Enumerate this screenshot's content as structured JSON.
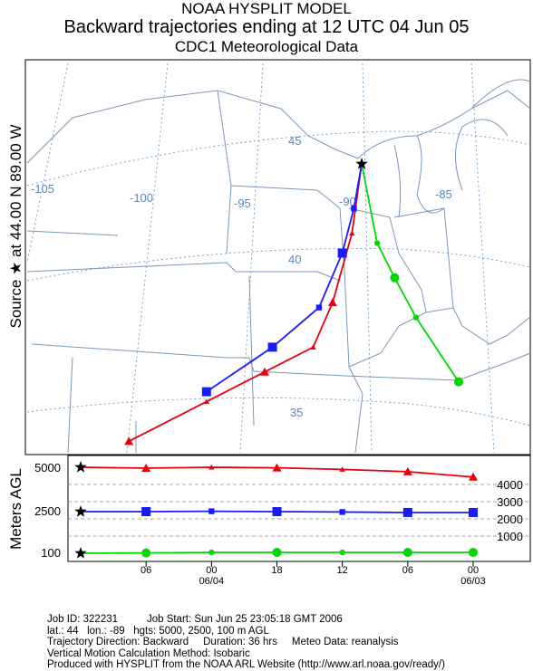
{
  "header": {
    "line1": "NOAA HYSPLIT MODEL",
    "line2": "Backward trajectories ending at 12 UTC 04 Jun 05",
    "line3": "CDC1 Meteorological Data"
  },
  "source_label": "Source ★ at   44.00 N   89.00 W",
  "vertical_axis_label": "Meters AGL",
  "map": {
    "longitude_labels": [
      "-105",
      "-100",
      "-95",
      "-90",
      "-85"
    ],
    "latitude_labels": [
      "45",
      "40",
      "35"
    ]
  },
  "chart_data": [
    {
      "type": "line",
      "subtype": "trajectory_map",
      "source": {
        "lat": 44.0,
        "lon": -89.0
      },
      "series": [
        {
          "height": "5000 m",
          "color": "#e8000b",
          "marker": "triangle",
          "points": [
            [
              -89.0,
              44.0
            ],
            [
              -89.5,
              42.6
            ],
            [
              -90.5,
              41.2
            ],
            [
              -91.5,
              40.3
            ],
            [
              -94.0,
              39.8
            ],
            [
              -97.0,
              39.2
            ],
            [
              -101.0,
              38.4
            ]
          ]
        },
        {
          "height": "2500 m",
          "color": "#1a1aff",
          "marker": "square",
          "points": [
            [
              -89.0,
              44.0
            ],
            [
              -89.4,
              43.1
            ],
            [
              -90.0,
              42.2
            ],
            [
              -91.2,
              41.1
            ],
            [
              -93.6,
              40.3
            ],
            [
              -97.0,
              39.4
            ]
          ]
        },
        {
          "height": "100 m",
          "color": "#00d800",
          "marker": "circle",
          "points": [
            [
              -89.0,
              44.0
            ],
            [
              -88.2,
              42.4
            ],
            [
              -87.3,
              41.7
            ],
            [
              -86.2,
              40.9
            ],
            [
              -84.0,
              39.6
            ]
          ]
        }
      ]
    },
    {
      "type": "line",
      "subtype": "height_time",
      "ylabel": "Meters AGL",
      "left_ticks": [
        "5000",
        "2500",
        "100"
      ],
      "right_ticks": [
        "4000",
        "3000",
        "2000",
        "1000"
      ],
      "x_ticks": [
        {
          "hour": "06",
          "date": ""
        },
        {
          "hour": "00",
          "date": "06/04"
        },
        {
          "hour": "18",
          "date": ""
        },
        {
          "hour": "12",
          "date": ""
        },
        {
          "hour": "06",
          "date": ""
        },
        {
          "hour": "00",
          "date": "06/03"
        }
      ],
      "hours_back": [
        0,
        -6,
        -12,
        -18,
        -24,
        -30,
        -36
      ],
      "series": [
        {
          "name": "5000",
          "color": "#e8000b",
          "marker": "triangle",
          "values": [
            5000,
            4950,
            5000,
            4970,
            4880,
            4750,
            4450
          ]
        },
        {
          "name": "2500",
          "color": "#1a1aff",
          "marker": "square",
          "values": [
            2500,
            2500,
            2520,
            2500,
            2480,
            2450,
            2450
          ]
        },
        {
          "name": "100",
          "color": "#00d800",
          "marker": "circle",
          "values": [
            100,
            120,
            150,
            150,
            150,
            150,
            150
          ]
        }
      ]
    }
  ],
  "footer": {
    "line1": "Job ID: 322231          Job Start: Sun Jun 25 23:05:18 GMT 2006",
    "line2": "lat.: 44   lon.: -89   hgts: 5000, 2500, 100 m AGL",
    "line3": "",
    "line4": "Trajectory Direction: Backward     Duration: 36 hrs     Meteo Data: reanalysis",
    "line5": "Vertical Motion Calculation Method: Isobaric",
    "line6": "Produced with HYSPLIT from the NOAA ARL Website (http://www.arl.noaa.gov/ready/)"
  },
  "colors": {
    "red": "#e8000b",
    "blue": "#1a1aff",
    "green": "#00d800",
    "grid": "#6b9ac4",
    "border": "#7b96b8"
  }
}
